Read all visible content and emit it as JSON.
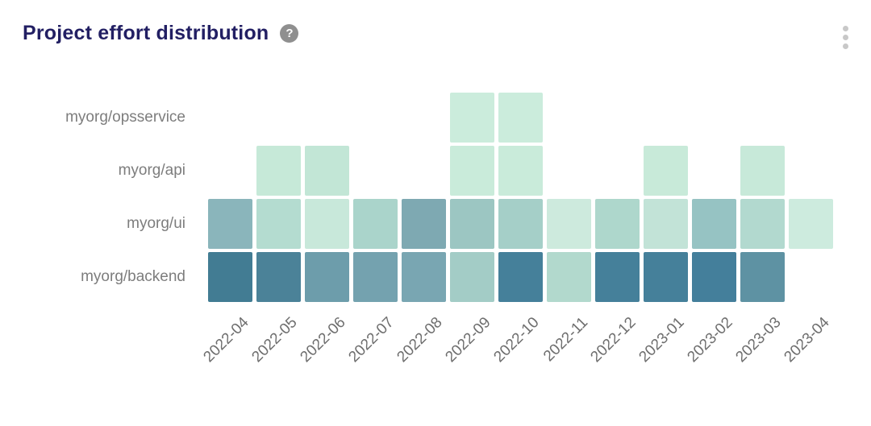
{
  "header": {
    "title": "Project effort distribution",
    "help_glyph": "?",
    "menu_icon": "kebab-vertical-dots"
  },
  "colors": {
    "title": "#221f63",
    "axis_label": "#6e6e6e",
    "row_label": "#7d7d7d",
    "help_icon_bg": "#8f8f8f",
    "menu_dots": "#c8c8c8",
    "scale_min": "#cdebde",
    "scale_max": "#427c93"
  },
  "chart_data": {
    "type": "heatmap",
    "title": "Project effort distribution",
    "xlabel": "",
    "ylabel": "",
    "grid": false,
    "legend_position": "none",
    "x": [
      "2022-04",
      "2022-05",
      "2022-06",
      "2022-07",
      "2022-08",
      "2022-09",
      "2022-10",
      "2022-11",
      "2022-12",
      "2023-01",
      "2023-02",
      "2023-03",
      "2023-04"
    ],
    "y": [
      "myorg/opsservice",
      "myorg/api",
      "myorg/ui",
      "myorg/backend"
    ],
    "value_note": "relative effort estimated from cell shade, 0-100; null = no activity",
    "series": [
      {
        "name": "myorg/opsservice",
        "values": [
          null,
          null,
          null,
          null,
          null,
          8,
          8,
          null,
          null,
          null,
          null,
          null,
          null
        ],
        "colors": [
          null,
          null,
          null,
          null,
          null,
          "#cbecdc",
          "#cbecdc",
          null,
          null,
          null,
          null,
          null,
          null
        ]
      },
      {
        "name": "myorg/api",
        "values": [
          null,
          12,
          15,
          null,
          null,
          9,
          9,
          null,
          null,
          10,
          null,
          11,
          null
        ],
        "colors": [
          null,
          "#c6e9d8",
          "#c2e6d6",
          null,
          null,
          "#c9ebda",
          "#c9ebda",
          null,
          null,
          "#c8ead9",
          null,
          "#c7e9d9",
          null
        ]
      },
      {
        "name": "myorg/ui",
        "values": [
          58,
          25,
          12,
          30,
          62,
          40,
          36,
          8,
          32,
          16,
          46,
          29,
          6
        ],
        "colors": [
          "#8ab5bb",
          "#b4dcd0",
          "#c8e8da",
          "#aad4cb",
          "#7ea9b2",
          "#9cc6c2",
          "#a5cfc8",
          "#cdeadd",
          "#aed7cc",
          "#c2e3d7",
          "#96c3c3",
          "#b2d9cf",
          "#cdebde"
        ]
      },
      {
        "name": "myorg/backend",
        "values": [
          95,
          90,
          70,
          65,
          62,
          35,
          92,
          28,
          92,
          92,
          93,
          80,
          null
        ],
        "colors": [
          "#427c93",
          "#4b8298",
          "#6d9dab",
          "#74a2af",
          "#79a6b2",
          "#a3ccc6",
          "#45809a",
          "#b2d9cd",
          "#45809a",
          "#45809a",
          "#447f9b",
          "#5e92a3",
          null
        ]
      }
    ]
  }
}
